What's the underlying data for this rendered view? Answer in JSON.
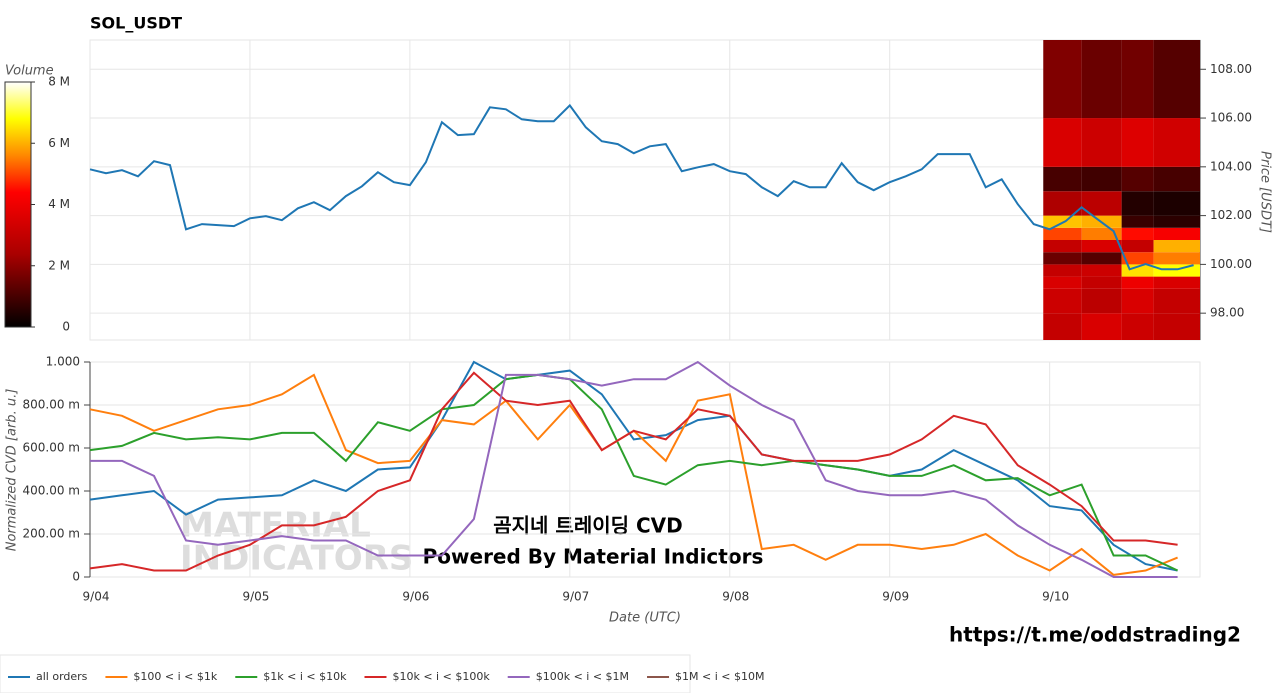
{
  "chart_data": [
    {
      "type": "line",
      "title": "SOL_USDT",
      "ylabel": "Price [USDT]",
      "color": "#1f77b4",
      "grid": true,
      "xlim": [
        0,
        6.94
      ],
      "ylim": [
        96.9,
        109.2
      ],
      "yticks": [
        {
          "value": 98,
          "label": "98.00"
        },
        {
          "value": 100,
          "label": "100.00"
        },
        {
          "value": 102,
          "label": "102.00"
        },
        {
          "value": 104,
          "label": "104.00"
        },
        {
          "value": 106,
          "label": "106.00"
        },
        {
          "value": 108,
          "label": "108.00"
        }
      ],
      "x": [
        0,
        0.1,
        0.2,
        0.3,
        0.4,
        0.5,
        0.6,
        0.7,
        0.8,
        0.9,
        1,
        1.1,
        1.2,
        1.3,
        1.4,
        1.5,
        1.6,
        1.7,
        1.8,
        1.9,
        2,
        2.1,
        2.2,
        2.3,
        2.4,
        2.5,
        2.6,
        2.7,
        2.8,
        2.9,
        3,
        3.1,
        3.2,
        3.3,
        3.4,
        3.5,
        3.6,
        3.7,
        3.8,
        3.9,
        4,
        4.1,
        4.2,
        4.3,
        4.4,
        4.5,
        4.6,
        4.7,
        4.8,
        4.9,
        5,
        5.1,
        5.2,
        5.3,
        5.4,
        5.5,
        5.6,
        5.7,
        5.8,
        5.9,
        6,
        6.1,
        6.2,
        6.3,
        6.4,
        6.5,
        6.6,
        6.7,
        6.8,
        6.9
      ],
      "values": [
        103.9,
        103.74,
        103.86,
        103.61,
        104.23,
        104.07,
        101.44,
        101.65,
        101.61,
        101.57,
        101.89,
        101.98,
        101.81,
        102.3,
        102.55,
        102.22,
        102.8,
        103.2,
        103.78,
        103.37,
        103.25,
        104.19,
        105.83,
        105.3,
        105.34,
        106.44,
        106.36,
        105.95,
        105.87,
        105.87,
        106.52,
        105.62,
        105.05,
        104.93,
        104.56,
        104.84,
        104.93,
        103.82,
        103.98,
        104.11,
        103.82,
        103.7,
        103.16,
        102.8,
        103.41,
        103.16,
        103.16,
        104.15,
        103.37,
        103.04,
        103.37,
        103.61,
        103.9,
        104.52,
        104.52,
        104.52,
        103.16,
        103.49,
        102.47,
        101.65,
        101.44,
        101.77,
        102.34,
        101.85,
        101.36,
        99.8,
        100.01,
        99.8,
        99.8,
        99.97
      ],
      "heatmap": {
        "colorbar_label": "Volume",
        "clim": [
          0,
          8000000
        ],
        "cticks": [
          0,
          {
            "value": 2000000,
            "label": "2 M"
          },
          {
            "value": 4000000,
            "label": "4 M"
          },
          {
            "value": 6000000,
            "label": "6 M"
          },
          {
            "value": 8000000,
            "label": "8 M"
          }
        ],
        "x_edges": [
          5.96,
          6.2,
          6.45,
          6.65,
          6.94
        ],
        "y_edges": [
          96.9,
          98,
          99,
          99.5,
          100,
          100.5,
          101,
          101.5,
          102,
          103,
          104,
          106,
          109.2
        ],
        "values": [
          [
            3000000,
            3500000,
            3200000,
            3000000
          ],
          [
            3200000,
            2800000,
            3500000,
            3000000
          ],
          [
            3500000,
            3000000,
            4000000,
            3500000
          ],
          [
            3000000,
            3200000,
            6500000,
            6800000
          ],
          [
            1500000,
            1200000,
            5000000,
            5500000
          ],
          [
            3000000,
            3500000,
            3000000,
            6000000
          ],
          [
            5000000,
            5500000,
            4500000,
            4200000
          ],
          [
            6200000,
            6000000,
            800000,
            600000
          ],
          [
            2500000,
            2800000,
            500000,
            400000
          ],
          [
            1000000,
            900000,
            1200000,
            1000000
          ],
          [
            3500000,
            3200000,
            3600000,
            3300000
          ],
          [
            1800000,
            1500000,
            1600000,
            1200000
          ]
        ]
      }
    },
    {
      "type": "line",
      "xlabel": "Date (UTC)",
      "ylabel": "Normalized CVD [arb. u.]",
      "grid": true,
      "xlim": [
        0,
        6.94
      ],
      "ylim": [
        0,
        1
      ],
      "xticks": [
        {
          "value": 0,
          "label": "9/04"
        },
        {
          "value": 1,
          "label": "9/05"
        },
        {
          "value": 2,
          "label": "9/06"
        },
        {
          "value": 3,
          "label": "9/07"
        },
        {
          "value": 4,
          "label": "9/08"
        },
        {
          "value": 5,
          "label": "9/09"
        },
        {
          "value": 6,
          "label": "9/10"
        }
      ],
      "yticks": [
        0,
        {
          "value": 0.2,
          "label": "200.00 m"
        },
        {
          "value": 0.4,
          "label": "400.00 m"
        },
        {
          "value": 0.6,
          "label": "600.00 m"
        },
        {
          "value": 0.8,
          "label": "800.00 m"
        },
        {
          "value": 1,
          "label": "1.000"
        }
      ],
      "x": [
        0,
        0.2,
        0.4,
        0.6,
        0.8,
        1,
        1.2,
        1.4,
        1.6,
        1.8,
        2,
        2.2,
        2.4,
        2.6,
        2.8,
        3,
        3.2,
        3.4,
        3.6,
        3.8,
        4,
        4.2,
        4.4,
        4.6,
        4.8,
        5,
        5.2,
        5.4,
        5.6,
        5.8,
        6,
        6.2,
        6.4,
        6.6,
        6.8
      ],
      "series": [
        {
          "name": "all orders",
          "color": "#1f77b4",
          "values": [
            0.36,
            0.38,
            0.4,
            0.29,
            0.36,
            0.37,
            0.38,
            0.45,
            0.4,
            0.5,
            0.51,
            0.73,
            1.0,
            0.92,
            0.94,
            0.96,
            0.85,
            0.64,
            0.66,
            0.73,
            0.75,
            0.57,
            0.54,
            0.52,
            0.5,
            0.47,
            0.5,
            0.59,
            0.52,
            0.45,
            0.33,
            0.31,
            0.15,
            0.06,
            0.03
          ]
        },
        {
          "name": "$100 < i < $1k",
          "color": "#ff7f0e",
          "values": [
            0.78,
            0.75,
            0.68,
            0.73,
            0.78,
            0.8,
            0.85,
            0.94,
            0.59,
            0.53,
            0.54,
            0.73,
            0.71,
            0.82,
            0.64,
            0.8,
            0.59,
            0.68,
            0.54,
            0.82,
            0.85,
            0.13,
            0.15,
            0.08,
            0.15,
            0.15,
            0.13,
            0.15,
            0.2,
            0.1,
            0.03,
            0.13,
            0.01,
            0.03,
            0.09
          ]
        },
        {
          "name": "$1k < i < $10k",
          "color": "#2ca02c",
          "values": [
            0.59,
            0.61,
            0.67,
            0.64,
            0.65,
            0.64,
            0.67,
            0.67,
            0.54,
            0.72,
            0.68,
            0.78,
            0.8,
            0.92,
            0.94,
            0.92,
            0.78,
            0.47,
            0.43,
            0.52,
            0.54,
            0.52,
            0.54,
            0.52,
            0.5,
            0.47,
            0.47,
            0.52,
            0.45,
            0.46,
            0.38,
            0.43,
            0.1,
            0.1,
            0.03
          ]
        },
        {
          "name": "$10k < i < $100k",
          "color": "#d62728",
          "values": [
            0.04,
            0.06,
            0.03,
            0.03,
            0.1,
            0.15,
            0.24,
            0.24,
            0.28,
            0.4,
            0.45,
            0.78,
            0.95,
            0.82,
            0.8,
            0.82,
            0.59,
            0.68,
            0.64,
            0.78,
            0.75,
            0.57,
            0.54,
            0.54,
            0.54,
            0.57,
            0.64,
            0.75,
            0.71,
            0.52,
            0.43,
            0.33,
            0.17,
            0.17,
            0.15
          ]
        },
        {
          "name": "$100k < i < $1M",
          "color": "#9467bd",
          "values": [
            0.54,
            0.54,
            0.47,
            0.17,
            0.15,
            0.17,
            0.19,
            0.17,
            0.17,
            0.1,
            0.1,
            0.1,
            0.27,
            0.94,
            0.94,
            0.92,
            0.89,
            0.92,
            0.92,
            1.0,
            0.89,
            0.8,
            0.73,
            0.45,
            0.4,
            0.38,
            0.38,
            0.4,
            0.36,
            0.24,
            0.15,
            0.08,
            0,
            0,
            0
          ]
        },
        {
          "name": "$1M < i < $10M",
          "color": "#8c564b",
          "values": [
            null,
            null,
            null,
            null,
            null,
            null,
            null,
            null,
            null,
            null,
            null,
            null,
            null,
            null,
            null,
            null,
            null,
            null,
            null,
            null,
            null,
            null,
            null,
            null,
            null,
            null,
            null,
            null,
            null,
            null,
            null,
            null,
            null,
            null,
            null
          ]
        }
      ],
      "annotations": [
        "곰지네 트레이딩 CVD",
        "Powered By Material Indictors",
        "https://t.me/oddstrading2"
      ],
      "watermark": [
        "MATERIAL",
        "INDICATORS"
      ]
    }
  ]
}
